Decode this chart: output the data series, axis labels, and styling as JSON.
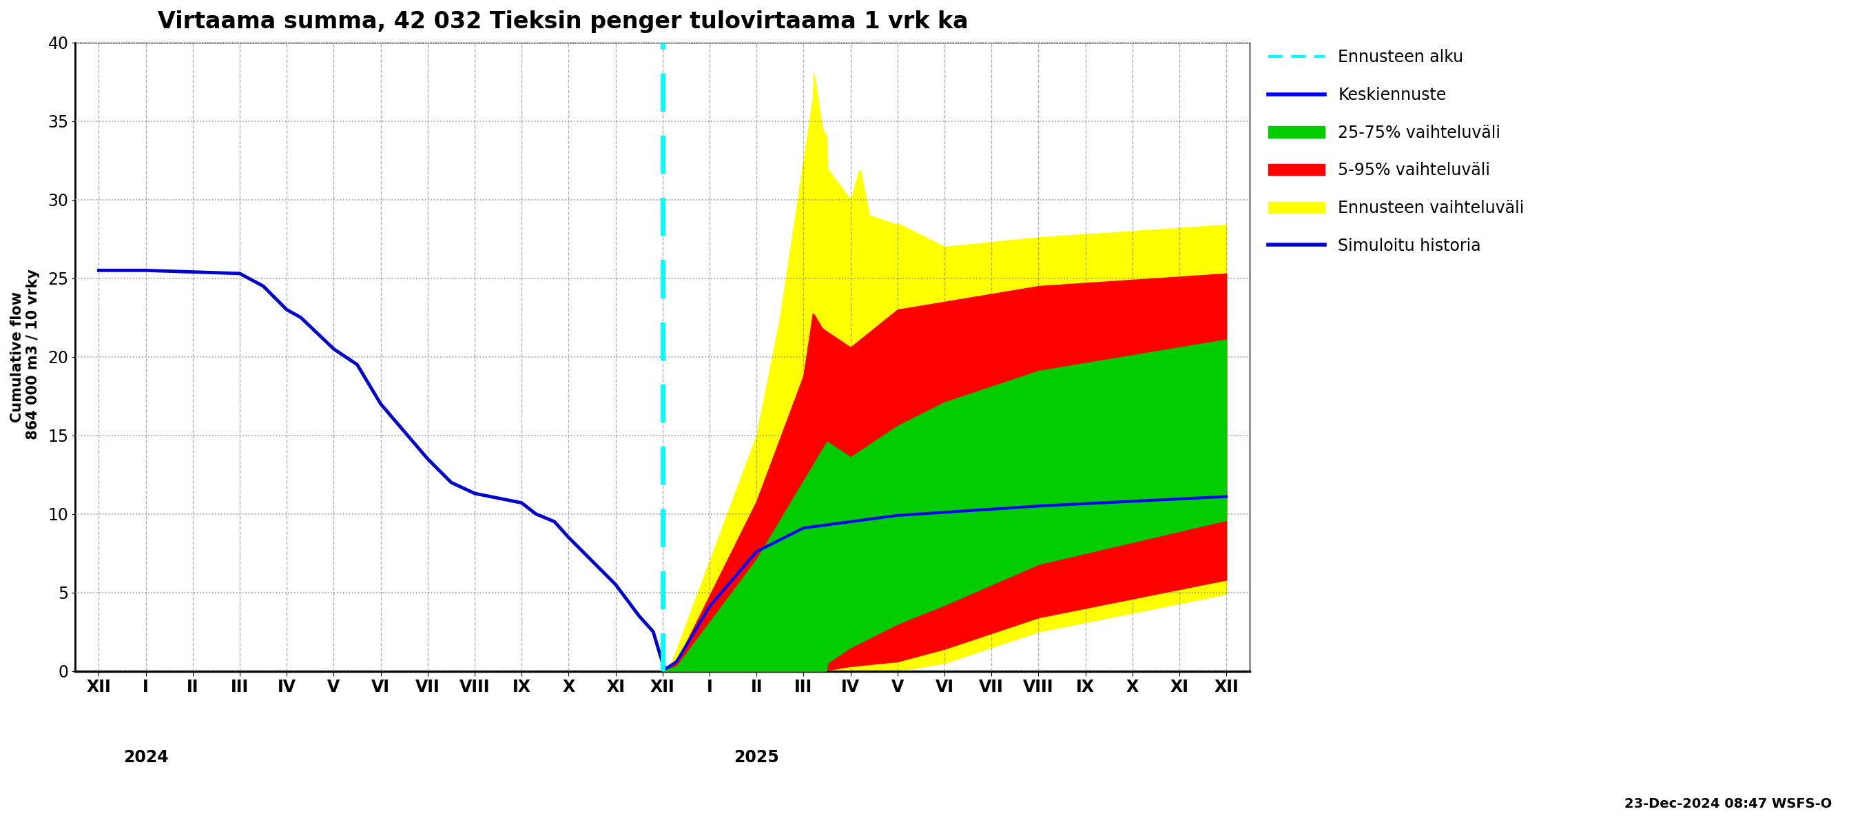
{
  "title": "Virtaama summa, 42 032 Tieksin penger tulovirtaama 1 vrk ka",
  "ylabel": "Cumulative flow\n 864 000 m3 / 10 vrky",
  "ylim": [
    0,
    40
  ],
  "yticks": [
    0,
    5,
    10,
    15,
    20,
    25,
    30,
    35,
    40
  ],
  "background_color": "#ffffff",
  "legend_labels": [
    "Ennusteen alku",
    "Keskiennuste",
    "25-75% vaihteluväli",
    "5-95% vaihteluväli",
    "Ennusteen vaihteluväli",
    "Simuloitu historia"
  ],
  "colors": {
    "cyan_dashed": "#00ffff",
    "median_line": "#0000ff",
    "p25_75": "#00cc00",
    "p5_95": "#ff0000",
    "forecast_band": "#ffff00",
    "history_line": "#0000cd"
  },
  "timestamp": "23-Dec-2024 08:47 WSFS-O",
  "month_labels": [
    "XII",
    "I",
    "II",
    "III",
    "IV",
    "V",
    "VI",
    "VII",
    "VIII",
    "IX",
    "X",
    "XI",
    "XII",
    "I",
    "II",
    "III",
    "IV",
    "V",
    "VI",
    "VII",
    "VIII",
    "IX",
    "X",
    "XI",
    "XII"
  ],
  "n_months": 25,
  "forecast_month_idx": 12
}
